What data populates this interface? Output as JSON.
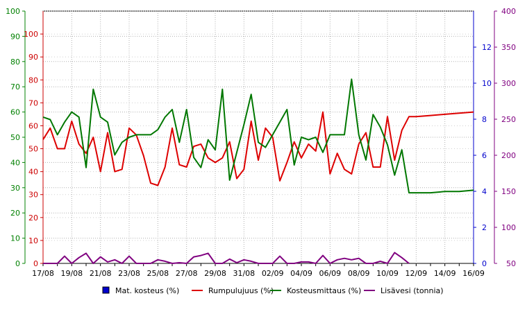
{
  "chart_data": {
    "type": "line",
    "title": "",
    "x": [
      "17/08",
      "18/08",
      "19/08",
      "20/08",
      "21/08",
      "22/08",
      "23/08",
      "24/08",
      "25/08",
      "26/08",
      "27/08",
      "28/08",
      "29/08",
      "30/08",
      "31/08",
      "01/09",
      "02/09",
      "03/09",
      "04/09",
      "05/09",
      "06/09",
      "07/09",
      "08/09",
      "09/09",
      "10/09",
      "11/09",
      "12/09",
      "13/09",
      "14/09",
      "15/09",
      "16/09"
    ],
    "x_tick_labels": [
      "17/08",
      "19/08",
      "21/08",
      "23/08",
      "25/08",
      "27/08",
      "29/08",
      "31/08",
      "02/09",
      "04/09",
      "06/09",
      "08/09",
      "10/09",
      "12/09",
      "14/09",
      "16/09"
    ],
    "axes": {
      "green_left": {
        "ticks": [
          0,
          10,
          20,
          30,
          40,
          50,
          60,
          70,
          80,
          90,
          100
        ],
        "range": [
          0,
          100
        ],
        "color": "#008000"
      },
      "red_left": {
        "ticks": [
          0,
          10,
          20,
          30,
          40,
          50,
          60,
          70,
          80,
          90,
          100
        ],
        "range": [
          0,
          110
        ],
        "color": "#cc0000"
      },
      "blue_right": {
        "ticks": [
          0,
          2,
          4,
          6,
          8,
          10,
          12
        ],
        "range": [
          0,
          14
        ],
        "color": "#0000cc"
      },
      "purple_right": {
        "ticks": [
          50,
          100,
          150,
          200,
          250,
          300,
          350,
          400
        ],
        "range": [
          50,
          400
        ],
        "color": "#800080"
      }
    },
    "grid": true,
    "legend_position": "bottom",
    "series": [
      {
        "name": "Mat. kosteus (%)",
        "color": "#0000cc",
        "axis": "blue_right",
        "marker": "square",
        "points": []
      },
      {
        "name": "Rumpulujuus (%)",
        "color": "#dd0000",
        "axis": "red_left",
        "points": [
          [
            0,
            54
          ],
          [
            0.5,
            59
          ],
          [
            1,
            50
          ],
          [
            1.5,
            50
          ],
          [
            2,
            62
          ],
          [
            2.5,
            52
          ],
          [
            3,
            48
          ],
          [
            3.5,
            55
          ],
          [
            4,
            40
          ],
          [
            4.5,
            57
          ],
          [
            5,
            40
          ],
          [
            5.5,
            41
          ],
          [
            6,
            59
          ],
          [
            6.5,
            56
          ],
          [
            7,
            47
          ],
          [
            7.5,
            35
          ],
          [
            8,
            34
          ],
          [
            8.5,
            42
          ],
          [
            9,
            59
          ],
          [
            9.5,
            43
          ],
          [
            10,
            42
          ],
          [
            10.5,
            51
          ],
          [
            11,
            52
          ],
          [
            11.5,
            46
          ],
          [
            12,
            44
          ],
          [
            12.5,
            46
          ],
          [
            13,
            53
          ],
          [
            13.5,
            37
          ],
          [
            14,
            41
          ],
          [
            14.5,
            62
          ],
          [
            15,
            45
          ],
          [
            15.5,
            59
          ],
          [
            16,
            55
          ],
          [
            16.5,
            36
          ],
          [
            17,
            44
          ],
          [
            17.5,
            53
          ],
          [
            18,
            46
          ],
          [
            18.5,
            52
          ],
          [
            19,
            49
          ],
          [
            19.5,
            66
          ],
          [
            20,
            39
          ],
          [
            20.5,
            48
          ],
          [
            21,
            41
          ],
          [
            21.5,
            39
          ],
          [
            22,
            52
          ],
          [
            22.5,
            57
          ],
          [
            23,
            42
          ],
          [
            23.5,
            42
          ],
          [
            24,
            64
          ],
          [
            24.5,
            45
          ],
          [
            25,
            58
          ],
          [
            25.5,
            64
          ],
          [
            26,
            64
          ],
          [
            27,
            64.5
          ],
          [
            28,
            65
          ],
          [
            29,
            65.5
          ],
          [
            30,
            66
          ]
        ]
      },
      {
        "name": "Kosteusmittaus (%)",
        "color": "#007700",
        "axis": "green_left",
        "points": [
          [
            0,
            58
          ],
          [
            0.5,
            57
          ],
          [
            1,
            51
          ],
          [
            1.5,
            56
          ],
          [
            2,
            60
          ],
          [
            2.5,
            58
          ],
          [
            3,
            38
          ],
          [
            3.5,
            69
          ],
          [
            4,
            58
          ],
          [
            4.5,
            56
          ],
          [
            5,
            43
          ],
          [
            5.5,
            48
          ],
          [
            6,
            50
          ],
          [
            6.5,
            51
          ],
          [
            7,
            51
          ],
          [
            7.5,
            51
          ],
          [
            8,
            53
          ],
          [
            8.5,
            58
          ],
          [
            9,
            61
          ],
          [
            9.5,
            48
          ],
          [
            10,
            61
          ],
          [
            10.5,
            42
          ],
          [
            11,
            38
          ],
          [
            11.5,
            49
          ],
          [
            12,
            45
          ],
          [
            12.5,
            69
          ],
          [
            13,
            33
          ],
          [
            13.5,
            44
          ],
          [
            14,
            55
          ],
          [
            14.5,
            67
          ],
          [
            15,
            48
          ],
          [
            15.5,
            46
          ],
          [
            16,
            51
          ],
          [
            16.5,
            56
          ],
          [
            17,
            61
          ],
          [
            17.5,
            39
          ],
          [
            18,
            50
          ],
          [
            18.5,
            49
          ],
          [
            19,
            50
          ],
          [
            19.5,
            44
          ],
          [
            20,
            51
          ],
          [
            20.5,
            51
          ],
          [
            21,
            51
          ],
          [
            21.5,
            73
          ],
          [
            22,
            51
          ],
          [
            22.5,
            41
          ],
          [
            23,
            59
          ],
          [
            23.5,
            54
          ],
          [
            24,
            47
          ],
          [
            24.5,
            35
          ],
          [
            25,
            45
          ],
          [
            25.5,
            28
          ],
          [
            26,
            28
          ],
          [
            27,
            28
          ],
          [
            28,
            28.5
          ],
          [
            29,
            28.5
          ],
          [
            30,
            29
          ]
        ]
      },
      {
        "name": "Lisävesi (tonnia)",
        "color": "#800080",
        "axis": "purple_right",
        "points": [
          [
            0,
            50
          ],
          [
            1,
            50
          ],
          [
            1.5,
            60
          ],
          [
            2,
            50
          ],
          [
            2.5,
            58
          ],
          [
            3,
            64
          ],
          [
            3.5,
            50
          ],
          [
            4,
            59
          ],
          [
            4.5,
            52
          ],
          [
            5,
            55
          ],
          [
            5.5,
            50
          ],
          [
            6,
            60
          ],
          [
            6.5,
            50
          ],
          [
            7,
            50
          ],
          [
            7.5,
            50
          ],
          [
            8,
            55
          ],
          [
            8.5,
            53
          ],
          [
            9,
            50
          ],
          [
            9.5,
            51
          ],
          [
            10,
            50
          ],
          [
            10.5,
            59
          ],
          [
            11,
            61
          ],
          [
            11.5,
            64
          ],
          [
            12,
            50
          ],
          [
            12.5,
            50
          ],
          [
            13,
            56
          ],
          [
            13.5,
            51
          ],
          [
            14,
            55
          ],
          [
            14.5,
            53
          ],
          [
            15,
            50
          ],
          [
            16,
            50
          ],
          [
            16.5,
            60
          ],
          [
            17,
            50
          ],
          [
            17.5,
            50
          ],
          [
            18,
            52
          ],
          [
            18.5,
            52
          ],
          [
            19,
            50
          ],
          [
            19.5,
            61
          ],
          [
            20,
            50
          ],
          [
            20.5,
            55
          ],
          [
            21,
            57
          ],
          [
            21.5,
            55
          ],
          [
            22,
            57
          ],
          [
            22.5,
            50
          ],
          [
            23,
            50
          ],
          [
            23.5,
            53
          ],
          [
            24,
            50
          ],
          [
            24.5,
            65
          ],
          [
            25,
            58
          ],
          [
            25.5,
            50
          ]
        ]
      }
    ]
  }
}
